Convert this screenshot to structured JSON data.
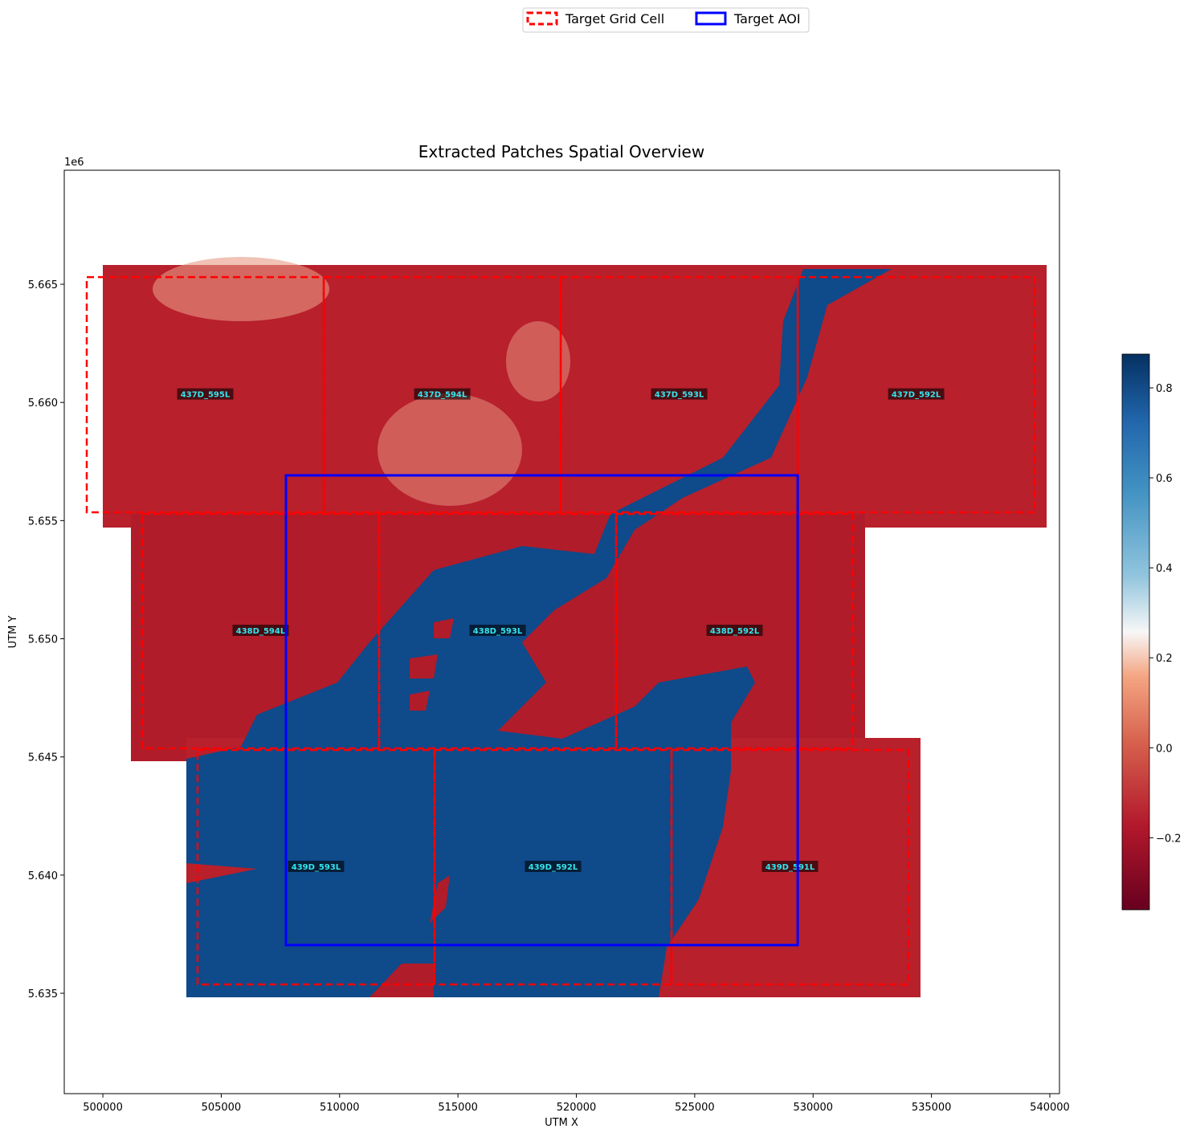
{
  "chart_data": {
    "type": "patch-map",
    "title": "Extracted Patches Spatial Overview",
    "xlabel": "UTM X",
    "ylabel": "UTM Y",
    "y_offset_text": "1e6",
    "xlim": [
      498370,
      540407
    ],
    "ylim": [
      5630753,
      5669825
    ],
    "xticks": [
      500000,
      505000,
      510000,
      515000,
      520000,
      525000,
      530000,
      535000,
      540000
    ],
    "yticks": [
      {
        "value": 5635000,
        "label": "5.635"
      },
      {
        "value": 5640000,
        "label": "5.640"
      },
      {
        "value": 5645000,
        "label": "5.645"
      },
      {
        "value": 5650000,
        "label": "5.650"
      },
      {
        "value": 5655000,
        "label": "5.655"
      },
      {
        "value": 5660000,
        "label": "5.660"
      },
      {
        "value": 5665000,
        "label": "5.665"
      }
    ],
    "legend": [
      {
        "name": "Target Grid Cell",
        "color": "#ff0000",
        "style": "dashed"
      },
      {
        "name": "Target AOI",
        "color": "#0000ff",
        "style": "solid"
      }
    ],
    "legend_position": "top",
    "grid_cells": [
      {
        "name": "437D_595L",
        "x": [
          499320,
          509330
        ],
        "y": [
          5655350,
          5665300
        ]
      },
      {
        "name": "437D_594L",
        "x": [
          509330,
          519340
        ],
        "y": [
          5655350,
          5665300
        ]
      },
      {
        "name": "437D_593L",
        "x": [
          519340,
          529350
        ],
        "y": [
          5655350,
          5665300
        ]
      },
      {
        "name": "437D_592L",
        "x": [
          529350,
          539356
        ],
        "y": [
          5655350,
          5665300
        ]
      },
      {
        "name": "438D_594L",
        "x": [
          501660,
          511670
        ],
        "y": [
          5645363,
          5655283
        ]
      },
      {
        "name": "438D_593L",
        "x": [
          511670,
          521680
        ],
        "y": [
          5645363,
          5655283
        ]
      },
      {
        "name": "438D_592L",
        "x": [
          521680,
          531690
        ],
        "y": [
          5645363,
          5655283
        ]
      },
      {
        "name": "439D_593L",
        "x": [
          504000,
          514010
        ],
        "y": [
          5635374,
          5645295
        ]
      },
      {
        "name": "439D_592L",
        "x": [
          514010,
          524020
        ],
        "y": [
          5635374,
          5645295
        ]
      },
      {
        "name": "439D_591L",
        "x": [
          524020,
          534030
        ],
        "y": [
          5635374,
          5645295
        ]
      }
    ],
    "aoi": {
      "x": [
        507735,
        529350
      ],
      "y": [
        5637039,
        5656914
      ]
    },
    "colorbar": {
      "clim": [
        -0.36,
        0.875
      ],
      "ticks": [
        {
          "value": -0.2,
          "label": "−0.2"
        },
        {
          "value": 0.0,
          "label": "0.0"
        },
        0.2,
        0.4,
        0.6,
        0.8
      ]
    }
  }
}
